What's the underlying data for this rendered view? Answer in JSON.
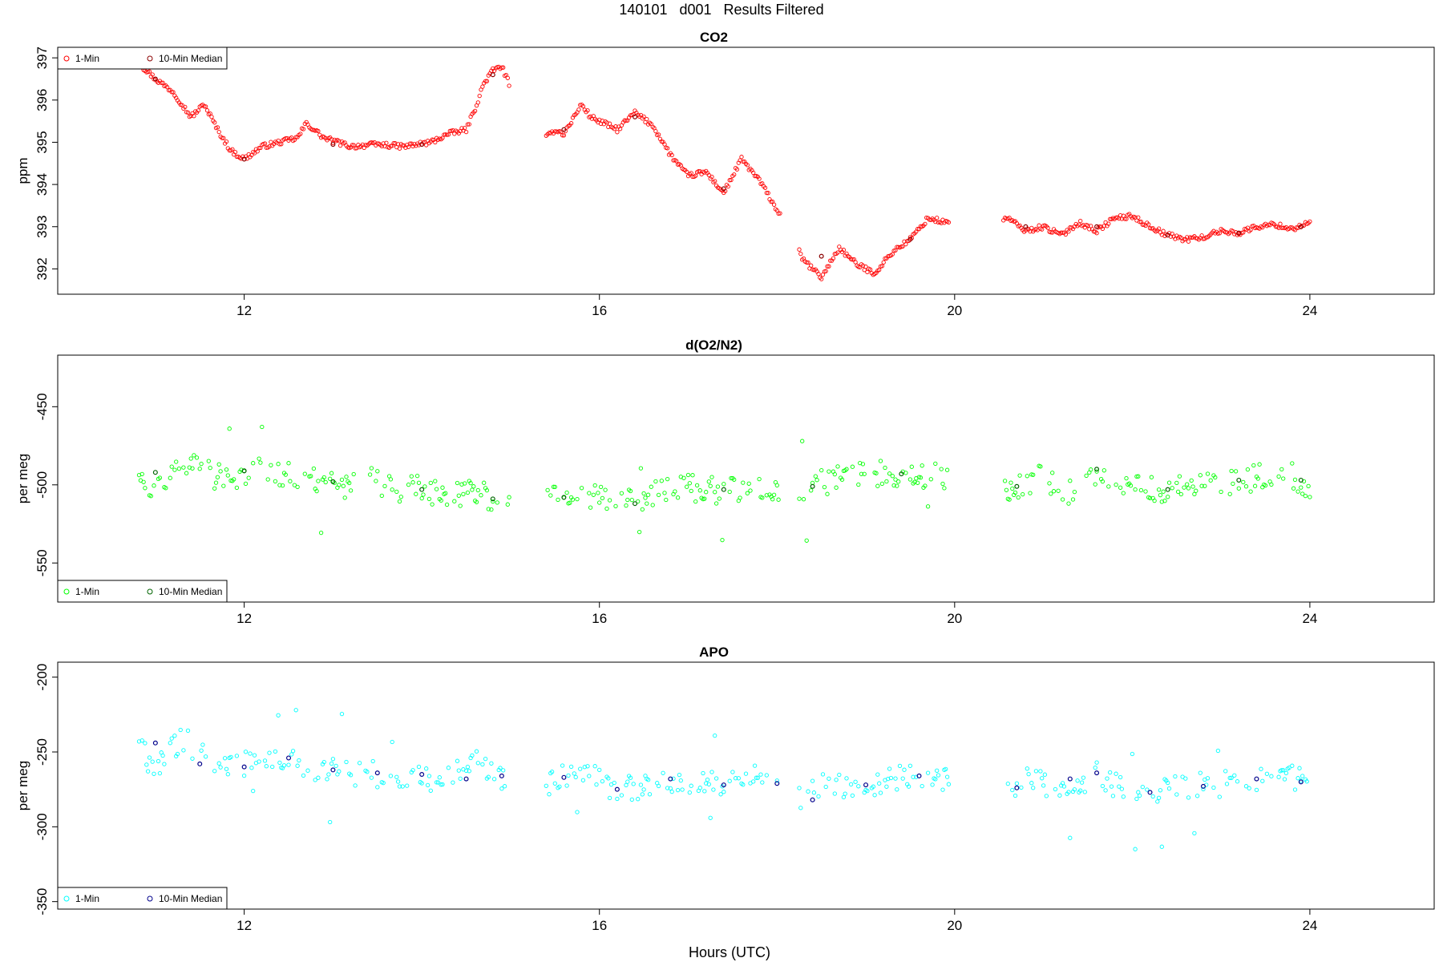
{
  "figure_title": "140101   d001   Results Filtered",
  "chart_data": [
    {
      "type": "scatter",
      "title": "CO2",
      "xlabel": "",
      "ylabel": "ppm",
      "xlim": [
        9.9,
        25.4
      ],
      "ylim": [
        391.4,
        397.25
      ],
      "xticks": [
        12,
        16,
        20,
        24
      ],
      "yticks": [
        392,
        393,
        394,
        395,
        396,
        397
      ],
      "legend": {
        "position": "top-left",
        "entries": [
          "1-Min",
          "10-Min Median"
        ]
      },
      "colors": {
        "one_min": "#ff0000",
        "median": "#8b0000"
      },
      "series": [
        {
          "name": "1-Min",
          "x": [
            10.8,
            11.0,
            11.2,
            11.4,
            11.55,
            11.7,
            11.85,
            12.0,
            12.2,
            12.4,
            12.6,
            12.7,
            12.9,
            13.2,
            13.5,
            13.8,
            14.1,
            14.3,
            14.5,
            14.6,
            14.7,
            14.8,
            14.9,
            15.0,
            15.4,
            15.5,
            15.6,
            15.8,
            15.9,
            16.0,
            16.2,
            16.4,
            16.6,
            16.8,
            17.0,
            17.2,
            17.4,
            17.6,
            17.8,
            18.0,
            18.3,
            18.5,
            18.7,
            18.9,
            19.1,
            19.3,
            19.5,
            19.7,
            19.9,
            20.6,
            20.8,
            21.0,
            21.2,
            21.4,
            21.6,
            21.8,
            22.0,
            22.2,
            22.4,
            22.6,
            22.8,
            23.0,
            23.2,
            23.4,
            23.6,
            23.8,
            24.0
          ],
          "y": [
            396.9,
            396.5,
            396.2,
            395.6,
            395.9,
            395.3,
            394.8,
            394.6,
            394.9,
            395.0,
            395.1,
            395.45,
            395.1,
            394.9,
            394.95,
            394.9,
            395.0,
            395.2,
            395.3,
            395.8,
            396.4,
            396.7,
            396.8,
            396.3,
            395.1,
            395.3,
            395.2,
            395.9,
            395.6,
            395.5,
            395.3,
            395.7,
            395.4,
            394.7,
            394.2,
            394.3,
            393.8,
            394.6,
            394.1,
            393.4,
            392.2,
            391.8,
            392.5,
            392.1,
            391.9,
            392.4,
            392.7,
            393.2,
            393.1,
            393.2,
            392.9,
            393.0,
            392.8,
            393.1,
            392.9,
            393.2,
            393.25,
            393.0,
            392.8,
            392.7,
            392.75,
            392.9,
            392.85,
            393.0,
            393.05,
            392.95,
            393.1
          ]
        },
        {
          "name": "10-Min Median",
          "x": [
            11.0,
            12.0,
            13.0,
            14.0,
            14.8,
            15.6,
            16.4,
            17.4,
            18.5,
            19.5,
            20.8,
            21.6,
            22.4,
            23.2,
            23.9
          ],
          "y": [
            396.5,
            394.6,
            394.95,
            394.95,
            396.6,
            395.3,
            395.6,
            393.9,
            392.3,
            392.7,
            393.0,
            393.0,
            392.8,
            392.85,
            393.0
          ]
        }
      ]
    },
    {
      "type": "scatter",
      "title": "d(O2/N2)",
      "xlabel": "",
      "ylabel": "per meg",
      "xlim": [
        9.9,
        25.4
      ],
      "ylim": [
        -575,
        -417
      ],
      "xticks": [
        12,
        16,
        20,
        24
      ],
      "yticks": [
        -450,
        -500,
        -550
      ],
      "legend": {
        "position": "bottom-left",
        "entries": [
          "1-Min",
          "10-Min Median"
        ]
      },
      "colors": {
        "one_min": "#00ff00",
        "median": "#006400"
      },
      "series": [
        {
          "name": "1-Min",
          "x": [
            10.8,
            11.0,
            11.3,
            11.6,
            11.9,
            12.2,
            12.5,
            12.8,
            13.1,
            13.4,
            13.7,
            14.0,
            14.3,
            14.6,
            14.9,
            15.4,
            15.6,
            15.9,
            16.2,
            16.5,
            16.8,
            17.1,
            17.4,
            17.7,
            18.0,
            18.3,
            18.6,
            18.9,
            19.2,
            19.5,
            19.8,
            20.6,
            20.8,
            21.0,
            21.3,
            21.6,
            21.9,
            22.2,
            22.5,
            22.8,
            23.1,
            23.4,
            23.7,
            24.0
          ],
          "y": [
            -492,
            -505,
            -485,
            -493,
            -498,
            -490,
            -494,
            -497,
            -500,
            -497,
            -502,
            -503,
            -506,
            -504,
            -510,
            -505,
            -508,
            -507,
            -512,
            -509,
            -503,
            -502,
            -504,
            -500,
            -502,
            -503,
            -497,
            -492,
            -493,
            -492,
            -495,
            -502,
            -498,
            -494,
            -505,
            -494,
            -500,
            -503,
            -502,
            -499,
            -498,
            -495,
            -492,
            -500
          ]
        },
        {
          "name": "10-Min Median",
          "x": [
            11.0,
            12.0,
            13.0,
            14.0,
            14.8,
            15.6,
            16.4,
            17.4,
            18.4,
            19.4,
            20.7,
            21.6,
            22.4,
            23.2,
            23.9
          ],
          "y": [
            -492,
            -491,
            -498,
            -503,
            -509,
            -508,
            -512,
            -503,
            -501,
            -493,
            -501,
            -490,
            -503,
            -497,
            -497
          ]
        }
      ]
    },
    {
      "type": "scatter",
      "title": "APO",
      "xlabel": "Hours (UTC)",
      "ylabel": "per meg",
      "xlim": [
        9.9,
        25.4
      ],
      "ylim": [
        -355,
        -190
      ],
      "xticks": [
        12,
        16,
        20,
        24
      ],
      "yticks": [
        -200,
        -250,
        -300,
        -350
      ],
      "legend": {
        "position": "bottom-left",
        "entries": [
          "1-Min",
          "10-Min Median"
        ]
      },
      "colors": {
        "one_min": "#00ffff",
        "median": "#00008b"
      },
      "series": [
        {
          "name": "1-Min",
          "x": [
            10.8,
            11.0,
            11.3,
            11.6,
            11.9,
            12.2,
            12.5,
            12.8,
            13.1,
            13.4,
            13.7,
            14.0,
            14.3,
            14.6,
            14.9,
            15.4,
            15.6,
            15.9,
            16.2,
            16.5,
            16.8,
            17.1,
            17.4,
            17.7,
            18.0,
            18.3,
            18.6,
            18.9,
            19.2,
            19.5,
            19.8,
            20.6,
            20.8,
            21.0,
            21.3,
            21.6,
            21.9,
            22.2,
            22.5,
            22.8,
            23.1,
            23.4,
            23.7,
            24.0
          ],
          "y": [
            -245,
            -262,
            -240,
            -256,
            -262,
            -252,
            -256,
            -262,
            -262,
            -265,
            -264,
            -268,
            -266,
            -258,
            -268,
            -270,
            -268,
            -266,
            -276,
            -272,
            -268,
            -271,
            -272,
            -267,
            -272,
            -282,
            -270,
            -274,
            -268,
            -266,
            -268,
            -275,
            -268,
            -270,
            -280,
            -265,
            -276,
            -277,
            -274,
            -272,
            -271,
            -268,
            -264,
            -272
          ]
        },
        {
          "name": "10-Min Median",
          "x": [
            11.0,
            11.5,
            12.0,
            12.5,
            13.0,
            13.5,
            14.0,
            14.5,
            14.9,
            15.6,
            16.2,
            16.8,
            17.4,
            18.0,
            18.4,
            19.0,
            19.6,
            20.7,
            21.3,
            21.6,
            22.2,
            22.8,
            23.4,
            23.9
          ],
          "y": [
            -244,
            -258,
            -260,
            -254,
            -262,
            -264,
            -265,
            -268,
            -266,
            -267,
            -275,
            -268,
            -272,
            -271,
            -282,
            -272,
            -266,
            -274,
            -268,
            -264,
            -277,
            -273,
            -268,
            -270
          ]
        }
      ]
    }
  ]
}
